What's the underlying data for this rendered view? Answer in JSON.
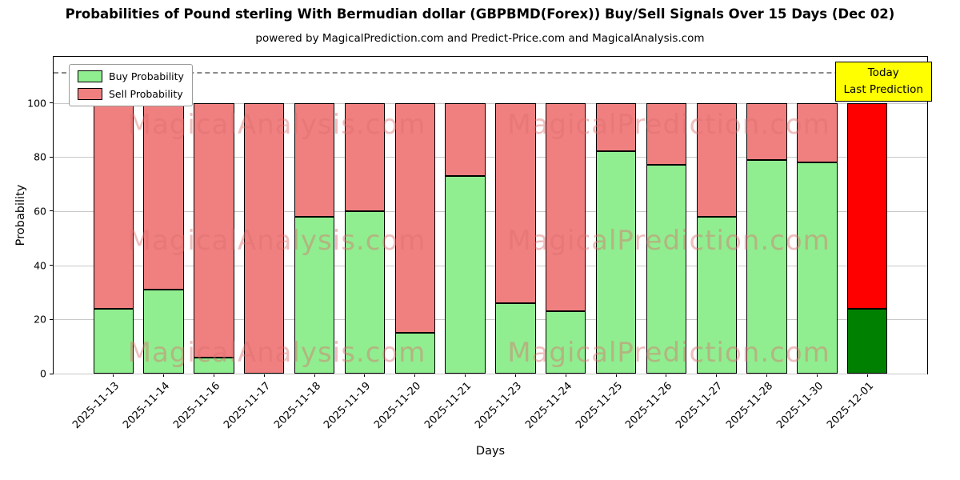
{
  "chart": {
    "title": "Probabilities of Pound sterling With Bermudian dollar (GBPBMD(Forex)) Buy/Sell Signals Over 15 Days (Dec 02)",
    "subtitle": "powered by MagicalPrediction.com and Predict-Price.com and MagicalAnalysis.com",
    "xlabel": "Days",
    "ylabel": "Probability",
    "legend": {
      "items": [
        {
          "label": "Buy Probability",
          "color": "#90ee90"
        },
        {
          "label": "Sell Probability",
          "color": "#f08080"
        }
      ]
    },
    "today_box": {
      "line1": "Today",
      "line2": "Last Prediction",
      "bg_color": "#ffff00"
    },
    "watermarks": {
      "left": "MagicalAnalysis.com",
      "right": "MagicalPrediction.com"
    }
  },
  "chart_data": {
    "type": "bar",
    "stacked": true,
    "title": "Probabilities of Pound sterling With Bermudian dollar (GBPBMD(Forex)) Buy/Sell Signals Over 15 Days (Dec 02)",
    "xlabel": "Days",
    "ylabel": "Probability",
    "categories": [
      "2025-11-13",
      "2025-11-14",
      "2025-11-16",
      "2025-11-17",
      "2025-11-18",
      "2025-11-19",
      "2025-11-20",
      "2025-11-21",
      "2025-11-23",
      "2025-11-24",
      "2025-11-25",
      "2025-11-26",
      "2025-11-27",
      "2025-11-28",
      "2025-11-30",
      "2025-12-01"
    ],
    "series": [
      {
        "name": "Buy Probability",
        "color": "#90ee90",
        "today_color": "#008000",
        "values": [
          24,
          31,
          6,
          0,
          58,
          60,
          15,
          73,
          26,
          23,
          82,
          77,
          58,
          79,
          78,
          24
        ]
      },
      {
        "name": "Sell Probability",
        "color": "#f08080",
        "today_color": "#ff0000",
        "values": [
          76,
          69,
          94,
          100,
          42,
          40,
          85,
          27,
          74,
          77,
          18,
          23,
          42,
          21,
          22,
          76
        ]
      }
    ],
    "ylim": [
      0,
      117
    ],
    "yticks": [
      0,
      20,
      40,
      60,
      80,
      100
    ],
    "grid": "horizontal",
    "legend_position": "upper left",
    "dashed_line_y": 111.5,
    "today_index": 15,
    "bar_edge_color": "#000000"
  }
}
